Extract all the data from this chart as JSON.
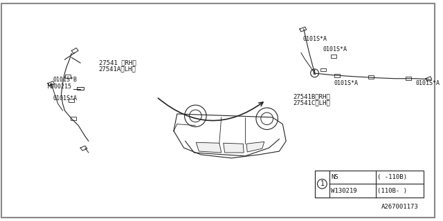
{
  "bg_color": "#ffffff",
  "border_color": "#000000",
  "diagram_id": "A267001173",
  "title_font_size": 7,
  "line_color": "#222222",
  "text_color": "#111111",
  "car_outline_color": "#333333",
  "parts": {
    "front_sensor_label1": "27541 〈RH〉",
    "front_sensor_label2": "27541A〈LH〉",
    "rear_sensor_label1": "27541B〈RH〉",
    "rear_sensor_label2": "27541C〈LH〉"
  },
  "table": {
    "circle_label": "1",
    "rows": [
      [
        "NS",
        "( -110B)"
      ],
      [
        "W130219",
        "(110B- )"
      ]
    ]
  },
  "labels_left": [
    "0101S*B",
    "M000215",
    "0101S*A"
  ],
  "labels_right_top": "0101S*A",
  "labels_right_bottom": [
    "0101S*A",
    "0101S*A"
  ],
  "diagram_code": "A267001173"
}
